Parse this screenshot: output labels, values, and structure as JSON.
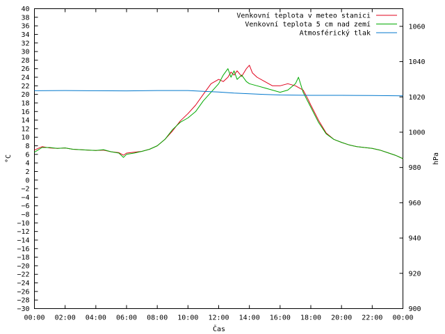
{
  "chart_data": {
    "type": "line",
    "xlabel": "Čas",
    "ylabel_left": "°C",
    "ylabel_right": "hPa",
    "x_ticks": [
      "00:00",
      "02:00",
      "04:00",
      "06:00",
      "08:00",
      "10:00",
      "12:00",
      "14:00",
      "16:00",
      "18:00",
      "20:00",
      "22:00",
      "00:00"
    ],
    "x_range_hours": [
      0,
      24
    ],
    "ylim_left": [
      -30,
      40
    ],
    "y_left_step": 2,
    "ylim_right": [
      900,
      1070
    ],
    "y_right_ticks": [
      900,
      920,
      940,
      960,
      980,
      1000,
      1020,
      1040,
      1060
    ],
    "grid": false,
    "legend_position": "top-right",
    "series": [
      {
        "name": "Venkovní teplota v meteo stanici",
        "color": "#e0001b",
        "axis": "left",
        "x": [
          0,
          0.5,
          1,
          1.5,
          2,
          2.5,
          3,
          3.5,
          4,
          4.5,
          5,
          5.5,
          5.8,
          6,
          6.5,
          7,
          7.5,
          8,
          8.5,
          9,
          9.5,
          10,
          10.5,
          11,
          11.5,
          12,
          12.3,
          12.6,
          12.8,
          13,
          13.2,
          13.5,
          13.8,
          14,
          14.2,
          14.5,
          15,
          15.5,
          16,
          16.5,
          17,
          17.5,
          17.8,
          18,
          18.5,
          19,
          19.5,
          20,
          20.5,
          21,
          21.5,
          22,
          22.5,
          23,
          23.5,
          24
        ],
        "values": [
          7.0,
          7.8,
          7.5,
          7.4,
          7.5,
          7.2,
          7.1,
          7.0,
          6.9,
          7.0,
          6.6,
          6.4,
          5.8,
          6.3,
          6.5,
          6.7,
          7.2,
          8.0,
          9.5,
          11.5,
          13.8,
          15.5,
          17.5,
          20.0,
          22.5,
          23.5,
          23.0,
          24.0,
          25.2,
          24.5,
          25.5,
          24.2,
          26.0,
          26.8,
          25.0,
          24.0,
          23.0,
          22.0,
          22.0,
          22.5,
          22.0,
          21.0,
          19.0,
          17.5,
          14.0,
          11.0,
          9.5,
          8.8,
          8.2,
          7.8,
          7.6,
          7.4,
          7.0,
          6.4,
          5.8,
          5.0
        ]
      },
      {
        "name": "Venkovní teplota 5 cm nad zemí",
        "color": "#00aa00",
        "axis": "left",
        "x": [
          0,
          0.5,
          1,
          1.5,
          2,
          2.5,
          3,
          3.5,
          4,
          4.5,
          5,
          5.5,
          5.8,
          6,
          6.5,
          7,
          7.5,
          8,
          8.5,
          9,
          9.5,
          10,
          10.5,
          11,
          11.5,
          12,
          12.3,
          12.6,
          12.8,
          13,
          13.2,
          13.5,
          13.8,
          14,
          14.5,
          15,
          15.5,
          16,
          16.5,
          17,
          17.2,
          17.5,
          18,
          18.5,
          19,
          19.5,
          20,
          20.5,
          21,
          21.5,
          22,
          22.5,
          23,
          23.5,
          24
        ],
        "values": [
          6.5,
          7.6,
          7.6,
          7.4,
          7.5,
          7.2,
          7.1,
          7.0,
          6.9,
          7.1,
          6.6,
          6.3,
          5.3,
          6.0,
          6.3,
          6.7,
          7.2,
          8.0,
          9.5,
          11.8,
          13.5,
          14.5,
          16.0,
          18.5,
          20.5,
          22.5,
          24.5,
          26.0,
          24.0,
          25.5,
          23.5,
          24.5,
          23.0,
          22.5,
          22.0,
          21.5,
          21.0,
          20.5,
          21.0,
          22.5,
          24.0,
          20.5,
          17.0,
          13.5,
          10.8,
          9.5,
          8.8,
          8.2,
          7.8,
          7.6,
          7.4,
          7.0,
          6.4,
          5.8,
          5.0
        ]
      },
      {
        "name": "Atmosférický tlak",
        "color": "#0077cc",
        "axis": "right",
        "x": [
          0,
          2,
          4,
          6,
          8,
          10,
          11,
          12,
          13,
          14,
          15,
          16,
          17,
          18,
          20,
          22,
          24
        ],
        "values": [
          1023.5,
          1023.6,
          1023.5,
          1023.4,
          1023.6,
          1023.6,
          1023.2,
          1022.8,
          1022.2,
          1021.8,
          1021.4,
          1021.1,
          1021.0,
          1020.9,
          1020.9,
          1020.8,
          1020.6
        ]
      }
    ]
  }
}
